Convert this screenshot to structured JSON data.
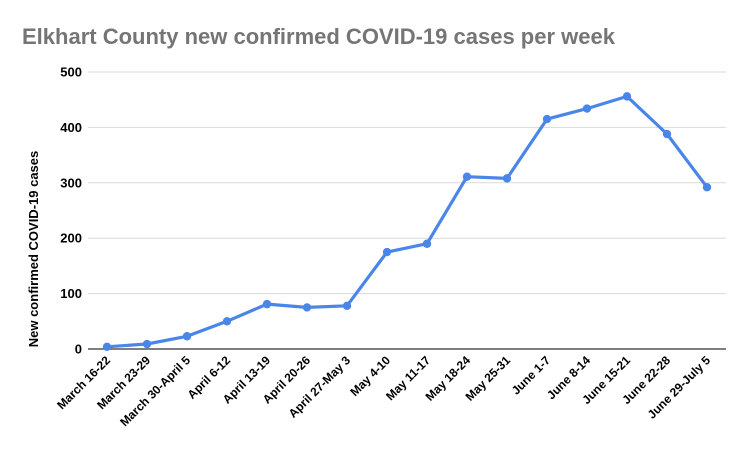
{
  "colors": {
    "series": "#4a86e8",
    "title": "#757575"
  },
  "chart_data": {
    "type": "line",
    "title": "Elkhart County new confirmed COVID-19 cases per week",
    "xlabel": "",
    "ylabel": "New confirmed COVID-19 cases",
    "ylim": [
      0,
      500
    ],
    "yticks": [
      0,
      100,
      200,
      300,
      400,
      500
    ],
    "grid": true,
    "categories": [
      "March 16-22",
      "March 23-29",
      "March 30-April 5",
      "April 6-12",
      "April 13-19",
      "April 20-26",
      "April 27-May 3",
      "May 4-10",
      "May 11-17",
      "May 18-24",
      "May 25-31",
      "June 1-7",
      "June 8-14",
      "June 15-21",
      "June 22-28",
      "June 29-July 5"
    ],
    "series": [
      {
        "values": [
          4,
          9,
          23,
          50,
          81,
          75,
          78,
          175,
          190,
          311,
          308,
          415,
          434,
          456,
          388,
          292
        ]
      }
    ]
  }
}
